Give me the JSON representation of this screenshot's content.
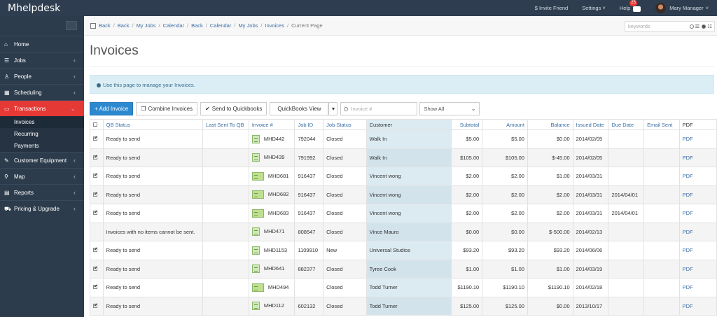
{
  "app": {
    "brand": "Mhelpdesk"
  },
  "topbar": {
    "invite": "$ Invite Friend",
    "settings": "Settings",
    "help": "Help",
    "notifications": "25",
    "user": "Mary Manager"
  },
  "sidebar": {
    "items": [
      {
        "label": "Home",
        "icon": "home-icon",
        "chevron": false
      },
      {
        "label": "Jobs",
        "icon": "list-icon",
        "chevron": true
      },
      {
        "label": "People",
        "icon": "people-icon",
        "chevron": true
      },
      {
        "label": "Scheduling",
        "icon": "calendar-icon",
        "chevron": true
      },
      {
        "label": "Transactions",
        "icon": "money-icon",
        "chevron": true,
        "active": true
      }
    ],
    "sub_items": [
      "Invoices",
      "Recurring",
      "Payments"
    ],
    "items_after": [
      {
        "label": "Customer Equipment",
        "icon": "wrench-icon"
      },
      {
        "label": "Map",
        "icon": "map-marker-icon"
      },
      {
        "label": "Reports",
        "icon": "chart-icon"
      },
      {
        "label": "Pricing & Upgrade",
        "icon": "cart-icon"
      }
    ]
  },
  "breadcrumb": {
    "items": [
      "Back",
      "Back",
      "My Jobs",
      "Calendar",
      "Back",
      "Calendar",
      "My Jobs",
      "Invoices"
    ],
    "current": "Current Page"
  },
  "search": {
    "placeholder": "keywords"
  },
  "page": {
    "title": "Invoices",
    "info": "Use this page to manage your Invoices."
  },
  "toolbar": {
    "add_invoice": "+ Add Invoice",
    "combine": "Combine Invoices",
    "send_qb": "Send to Quickbooks",
    "qb_view": "QuickBooks View",
    "invoice_placeholder": "Invoice #",
    "filter": "Show All"
  },
  "table": {
    "headers": [
      "",
      "QB Status",
      "Last Sent To QB",
      "Invoice #",
      "Job ID",
      "Job Status",
      "Customer",
      "Subtotal",
      "Amount",
      "Balance",
      "Issued Date",
      "Due Date",
      "Email Sent",
      "PDF"
    ],
    "rows": [
      {
        "checked": true,
        "qb_status": "Ready to send",
        "last_sent": "",
        "invoice": "MHD442",
        "job_id": "792044",
        "job_status": "Closed",
        "customer": "Walk In",
        "subtotal": "$5.00",
        "amount": "$5.00",
        "balance": "$0.00",
        "issued": "2014/02/05",
        "due": "",
        "email_sent": "",
        "pdf": "PDF"
      },
      {
        "checked": true,
        "qb_status": "Ready to send",
        "last_sent": "",
        "invoice": "MHD439",
        "job_id": "791992",
        "job_status": "Closed",
        "customer": "Walk In",
        "subtotal": "$105.00",
        "amount": "$105.00",
        "balance": "$-45.00",
        "issued": "2014/02/05",
        "due": "",
        "email_sent": "",
        "pdf": "PDF"
      },
      {
        "checked": true,
        "qb_status": "Ready to send",
        "last_sent": "",
        "invoice": "MHD681",
        "job_id": "916437",
        "job_status": "Closed",
        "customer": "Vincent wong",
        "subtotal": "$2.00",
        "amount": "$2.00",
        "balance": "$1.00",
        "issued": "2014/03/31",
        "due": "",
        "email_sent": "",
        "pdf": "PDF"
      },
      {
        "checked": true,
        "qb_status": "Ready to send",
        "last_sent": "",
        "invoice": "MHD682",
        "job_id": "916437",
        "job_status": "Closed",
        "customer": "Vincent wong",
        "subtotal": "$2.00",
        "amount": "$2.00",
        "balance": "$2.00",
        "issued": "2014/03/31",
        "due": "2014/04/01",
        "email_sent": "",
        "pdf": "PDF"
      },
      {
        "checked": true,
        "qb_status": "Ready to send",
        "last_sent": "",
        "invoice": "MHD683",
        "job_id": "916437",
        "job_status": "Closed",
        "customer": "Vincent wong",
        "subtotal": "$2.00",
        "amount": "$2.00",
        "balance": "$2.00",
        "issued": "2014/03/31",
        "due": "2014/04/01",
        "email_sent": "",
        "pdf": "PDF"
      },
      {
        "checked": null,
        "qb_status": "Invoices with no items cannot be sent.",
        "last_sent": "",
        "invoice": "MHD471",
        "job_id": "808547",
        "job_status": "Closed",
        "customer": "Vince Mauro",
        "subtotal": "$0.00",
        "amount": "$0.00",
        "balance": "$-500.00",
        "issued": "2014/02/13",
        "due": "",
        "email_sent": "",
        "pdf": "PDF"
      },
      {
        "checked": true,
        "qb_status": "Ready to send",
        "last_sent": "",
        "invoice": "MHD1153",
        "job_id": "1109910",
        "job_status": "New",
        "customer": "Universal Studios",
        "subtotal": "$93.20",
        "amount": "$93.20",
        "balance": "$93.20",
        "issued": "2014/06/06",
        "due": "",
        "email_sent": "",
        "pdf": "PDF"
      },
      {
        "checked": true,
        "qb_status": "Ready to send",
        "last_sent": "",
        "invoice": "MHD641",
        "job_id": "882377",
        "job_status": "Closed",
        "customer": "Tyree Cook",
        "subtotal": "$1.00",
        "amount": "$1.00",
        "balance": "$1.00",
        "issued": "2014/03/19",
        "due": "",
        "email_sent": "",
        "pdf": "PDF"
      },
      {
        "checked": true,
        "qb_status": "Ready to send",
        "last_sent": "",
        "invoice": "MHD494",
        "job_id": "",
        "job_status": "Closed",
        "customer": "Todd Turner",
        "subtotal": "$1190.10",
        "amount": "$1190.10",
        "balance": "$1190.10",
        "issued": "2014/02/18",
        "due": "",
        "email_sent": "",
        "pdf": "PDF"
      },
      {
        "checked": true,
        "qb_status": "Ready to send",
        "last_sent": "",
        "invoice": "MHD112",
        "job_id": "602132",
        "job_status": "Closed",
        "customer": "Todd Turner",
        "subtotal": "$125.00",
        "amount": "$125.00",
        "balance": "$0.00",
        "issued": "2013/10/17",
        "due": "",
        "email_sent": "",
        "pdf": "PDF"
      }
    ]
  }
}
